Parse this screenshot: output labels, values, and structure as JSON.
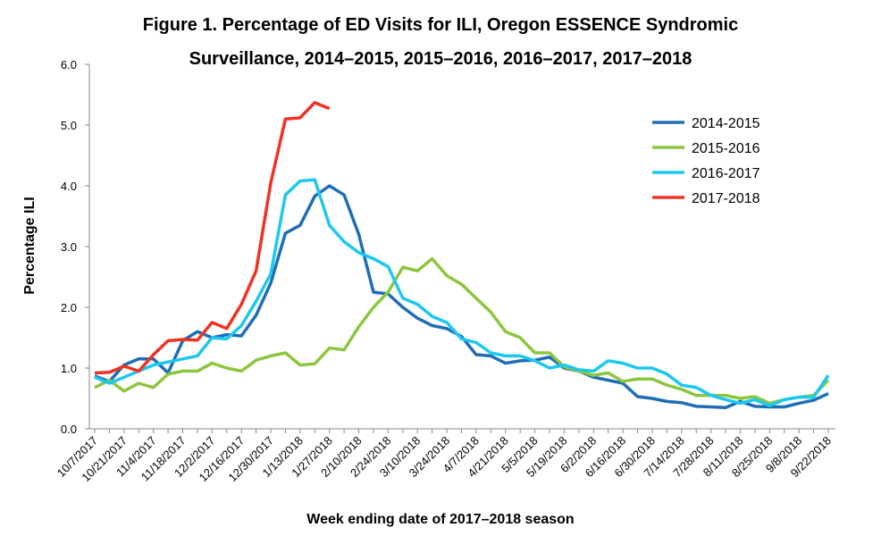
{
  "chart_data": {
    "type": "line",
    "title": [
      "Figure 1. Percentage of ED Visits for ILI, Oregon ESSENCE Syndromic",
      "Surveillance, 2014–2015, 2015–2016, 2016–2017, 2017–2018"
    ],
    "xlabel": "Week ending date of 2017–2018 season",
    "ylabel": "Percentage ILI",
    "categories": [
      "10/7/2017",
      null,
      "10/21/2017",
      null,
      "11/4/2017",
      null,
      "11/18/2017",
      null,
      "12/2/2017",
      null,
      "12/16/2017",
      null,
      "12/30/2017",
      null,
      "1/13/2018",
      null,
      "1/27/2018",
      null,
      "2/10/2018",
      null,
      "2/24/2018",
      null,
      "3/10/2018",
      null,
      "3/24/2018",
      null,
      "4/7/2018",
      null,
      "4/21/2018",
      null,
      "5/5/2018",
      null,
      "5/19/2018",
      null,
      "6/2/2018",
      null,
      "6/16/2018",
      null,
      "6/30/2018",
      null,
      "7/14/2018",
      null,
      "7/28/2018",
      null,
      "8/11/2018",
      null,
      "8/25/2018",
      null,
      "9/8/2018",
      null,
      "9/22/2018"
    ],
    "ylim": [
      0,
      6
    ],
    "yticks": [
      {
        "value": 0,
        "label": "0.0"
      },
      {
        "value": 1,
        "label": "1.0"
      },
      {
        "value": 2,
        "label": "2.0"
      },
      {
        "value": 3,
        "label": "3.0"
      },
      {
        "value": 4,
        "label": "4.0"
      },
      {
        "value": 5,
        "label": "5.0"
      },
      {
        "value": 6,
        "label": "6.0"
      }
    ],
    "grid": false,
    "legend": "upper right",
    "series": [
      {
        "name": "2014-2015",
        "color": "#1f6db5",
        "values": [
          0.87,
          0.78,
          1.05,
          1.15,
          1.15,
          0.92,
          1.45,
          1.6,
          1.5,
          1.55,
          1.53,
          1.87,
          2.4,
          3.22,
          3.35,
          3.83,
          4.0,
          3.85,
          3.2,
          2.25,
          2.22,
          2.0,
          1.82,
          1.7,
          1.65,
          1.52,
          1.22,
          1.2,
          1.08,
          1.12,
          1.13,
          1.18,
          1.0,
          0.95,
          0.85,
          0.8,
          0.75,
          0.53,
          0.5,
          0.45,
          0.43,
          0.37,
          0.36,
          0.35,
          0.45,
          0.37,
          0.36,
          0.36,
          0.42,
          0.47,
          0.58
        ]
      },
      {
        "name": "2015-2016",
        "color": "#8cc63f",
        "values": [
          0.68,
          0.8,
          0.62,
          0.75,
          0.68,
          0.9,
          0.95,
          0.95,
          1.08,
          1.0,
          0.95,
          1.13,
          1.2,
          1.25,
          1.05,
          1.07,
          1.33,
          1.3,
          1.68,
          2.0,
          2.25,
          2.66,
          2.6,
          2.8,
          2.52,
          2.38,
          2.15,
          1.92,
          1.6,
          1.5,
          1.25,
          1.25,
          1.02,
          0.95,
          0.88,
          0.92,
          0.78,
          0.82,
          0.82,
          0.72,
          0.65,
          0.55,
          0.55,
          0.55,
          0.5,
          0.53,
          0.42,
          0.48,
          0.52,
          0.55,
          0.8
        ]
      },
      {
        "name": "2016-2017",
        "color": "#1cc8ef",
        "values": [
          0.85,
          0.75,
          0.85,
          0.95,
          1.05,
          1.1,
          1.15,
          1.2,
          1.5,
          1.48,
          1.7,
          2.1,
          2.55,
          3.85,
          4.08,
          4.1,
          3.35,
          3.08,
          2.9,
          2.8,
          2.67,
          2.15,
          2.05,
          1.85,
          1.75,
          1.48,
          1.42,
          1.25,
          1.2,
          1.2,
          1.12,
          1.0,
          1.05,
          0.97,
          0.95,
          1.12,
          1.08,
          1.0,
          1.0,
          0.9,
          0.72,
          0.68,
          0.55,
          0.48,
          0.42,
          0.48,
          0.38,
          0.48,
          0.52,
          0.52,
          0.88
        ]
      },
      {
        "name": "2017-2018",
        "color": "#ee3323",
        "values": [
          0.92,
          0.93,
          1.03,
          0.95,
          1.22,
          1.45,
          1.47,
          1.46,
          1.75,
          1.65,
          2.05,
          2.6,
          4.05,
          5.1,
          5.12,
          5.37,
          5.27,
          null,
          null,
          null,
          null,
          null,
          null,
          null,
          null,
          null,
          null,
          null,
          null,
          null,
          null,
          null,
          null,
          null,
          null,
          null,
          null,
          null,
          null,
          null,
          null,
          null,
          null,
          null,
          null,
          null,
          null,
          null,
          null,
          null,
          null
        ]
      }
    ]
  }
}
